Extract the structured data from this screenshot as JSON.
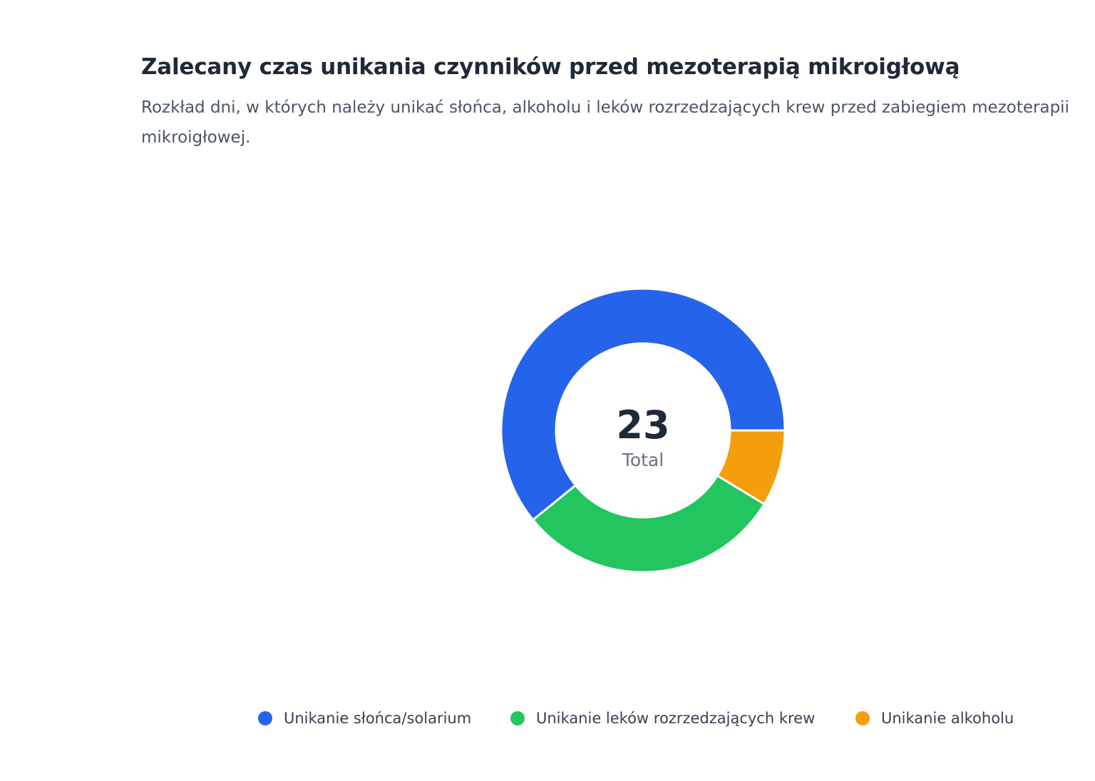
{
  "header": {
    "title": "Zalecany czas unikania czynników przed mezoterapią mikroigłową",
    "subtitle": "Rozkład dni, w których należy unikać słońca, alkoholu i leków rozrzedzających krew przed zabiegiem mezoterapii mikroigłowej."
  },
  "center": {
    "value": "23",
    "caption": "Total"
  },
  "chart_data": {
    "type": "pie",
    "variant": "donut",
    "title": "Zalecany czas unikania czynników przed mezoterapią mikroigłową",
    "subtitle": "Rozkład dni, w których należy unikać słońca, alkoholu i leków rozrzedzających krew przed zabiegiem mezoterapii mikroigłowej.",
    "total": 23,
    "legend_position": "bottom",
    "slices": [
      {
        "label": "Unikanie słońca/solarium",
        "value": 14,
        "color": "#2563eb"
      },
      {
        "label": "Unikanie leków rozrzedzających krew",
        "value": 7,
        "color": "#22c55e"
      },
      {
        "label": "Unikanie alkoholu",
        "value": 2,
        "color": "#f59e0b"
      }
    ]
  }
}
